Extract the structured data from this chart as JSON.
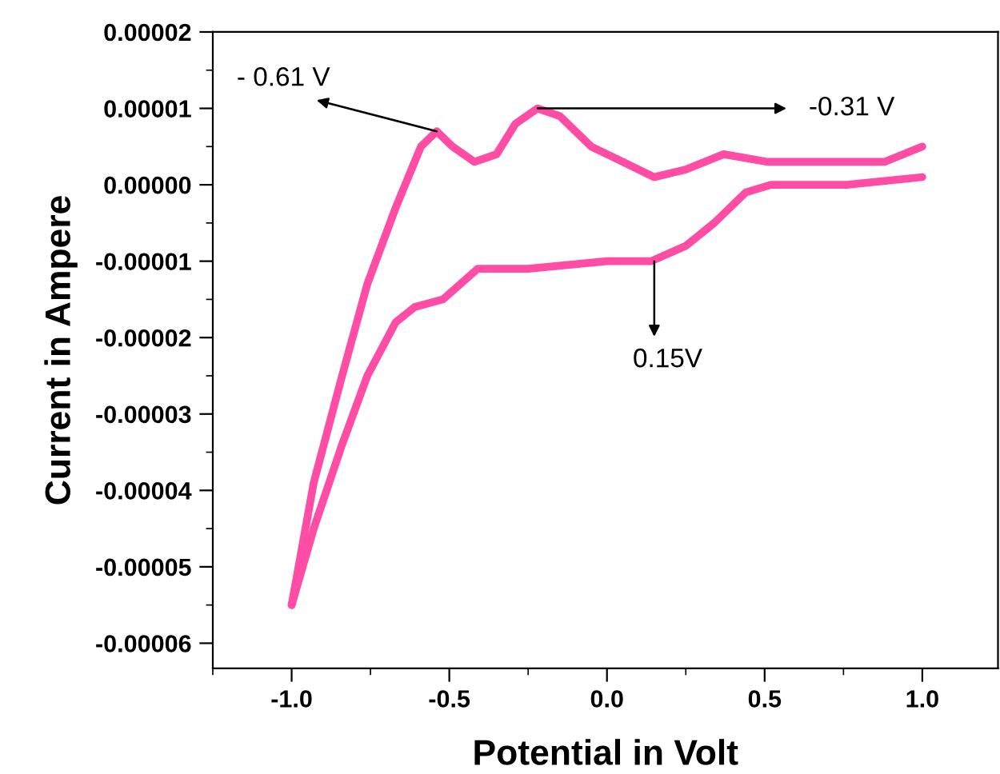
{
  "chart_data": {
    "type": "line",
    "xlabel": "Potential in Volt",
    "ylabel": "Current in Ampere",
    "xlim": [
      -1.25,
      1.24
    ],
    "ylim": [
      -6.33e-05,
      2e-05
    ],
    "xticks": [
      {
        "value": -1,
        "label": "-1.0"
      },
      {
        "value": -0.5,
        "label": "-0.5"
      },
      {
        "value": 0,
        "label": "0.0"
      },
      {
        "value": 0.5,
        "label": "0.5"
      },
      {
        "value": 1,
        "label": "1.0"
      }
    ],
    "yticks": [
      {
        "value": 2e-05,
        "label": "0.00002"
      },
      {
        "value": 1e-05,
        "label": "0.00001"
      },
      {
        "value": 0,
        "label": "0.00000"
      },
      {
        "value": -1e-05,
        "label": "-0.00001"
      },
      {
        "value": -2e-05,
        "label": "-0.00002"
      },
      {
        "value": -3e-05,
        "label": "-0.00003"
      },
      {
        "value": -4e-05,
        "label": "-0.00004"
      },
      {
        "value": -5e-05,
        "label": "-0.00005"
      },
      {
        "value": -6e-05,
        "label": "-0.00006"
      }
    ],
    "grid": false,
    "legend": false,
    "marker": "none",
    "line_style": "solid",
    "series": [
      {
        "color": "#ff4da6",
        "x": [
          -1.0,
          -0.93,
          -0.84,
          -0.76,
          -0.67,
          -0.59,
          -0.54,
          -0.49,
          -0.42,
          -0.35,
          -0.29,
          -0.22,
          -0.15,
          -0.05,
          0.05,
          0.15,
          0.25,
          0.37,
          0.51,
          0.73,
          0.88,
          1.0
        ],
        "values": [
          -5.5e-05,
          -3.9e-05,
          -2.5e-05,
          -1.3e-05,
          -3e-06,
          5e-06,
          7e-06,
          5e-06,
          3e-06,
          4e-06,
          8e-06,
          1e-05,
          9e-06,
          5e-06,
          3e-06,
          1e-06,
          2e-06,
          4e-06,
          3e-06,
          3e-06,
          3e-06,
          5e-06
        ]
      },
      {
        "color": "#ff4da6",
        "x": [
          -1.0,
          -0.93,
          -0.84,
          -0.76,
          -0.67,
          -0.61,
          -0.52,
          -0.41,
          -0.25,
          0.0,
          0.14,
          0.25,
          0.34,
          0.44,
          0.52,
          0.76,
          1.0
        ],
        "values": [
          -5.5e-05,
          -4.5e-05,
          -3.4e-05,
          -2.5e-05,
          -1.8e-05,
          -1.6e-05,
          -1.5e-05,
          -1.1e-05,
          -1.1e-05,
          -1e-05,
          -1e-05,
          -8e-06,
          -5e-06,
          -1e-06,
          0.0,
          0.0,
          1e-06
        ]
      }
    ],
    "annotations": [
      {
        "text": "- 0.61 V",
        "x": -0.54,
        "y": 7e-06
      },
      {
        "text": "-0.31 V",
        "x": -0.22,
        "y": 1e-05
      },
      {
        "text": "0.15V",
        "x": 0.15,
        "y": -1e-05
      }
    ]
  }
}
